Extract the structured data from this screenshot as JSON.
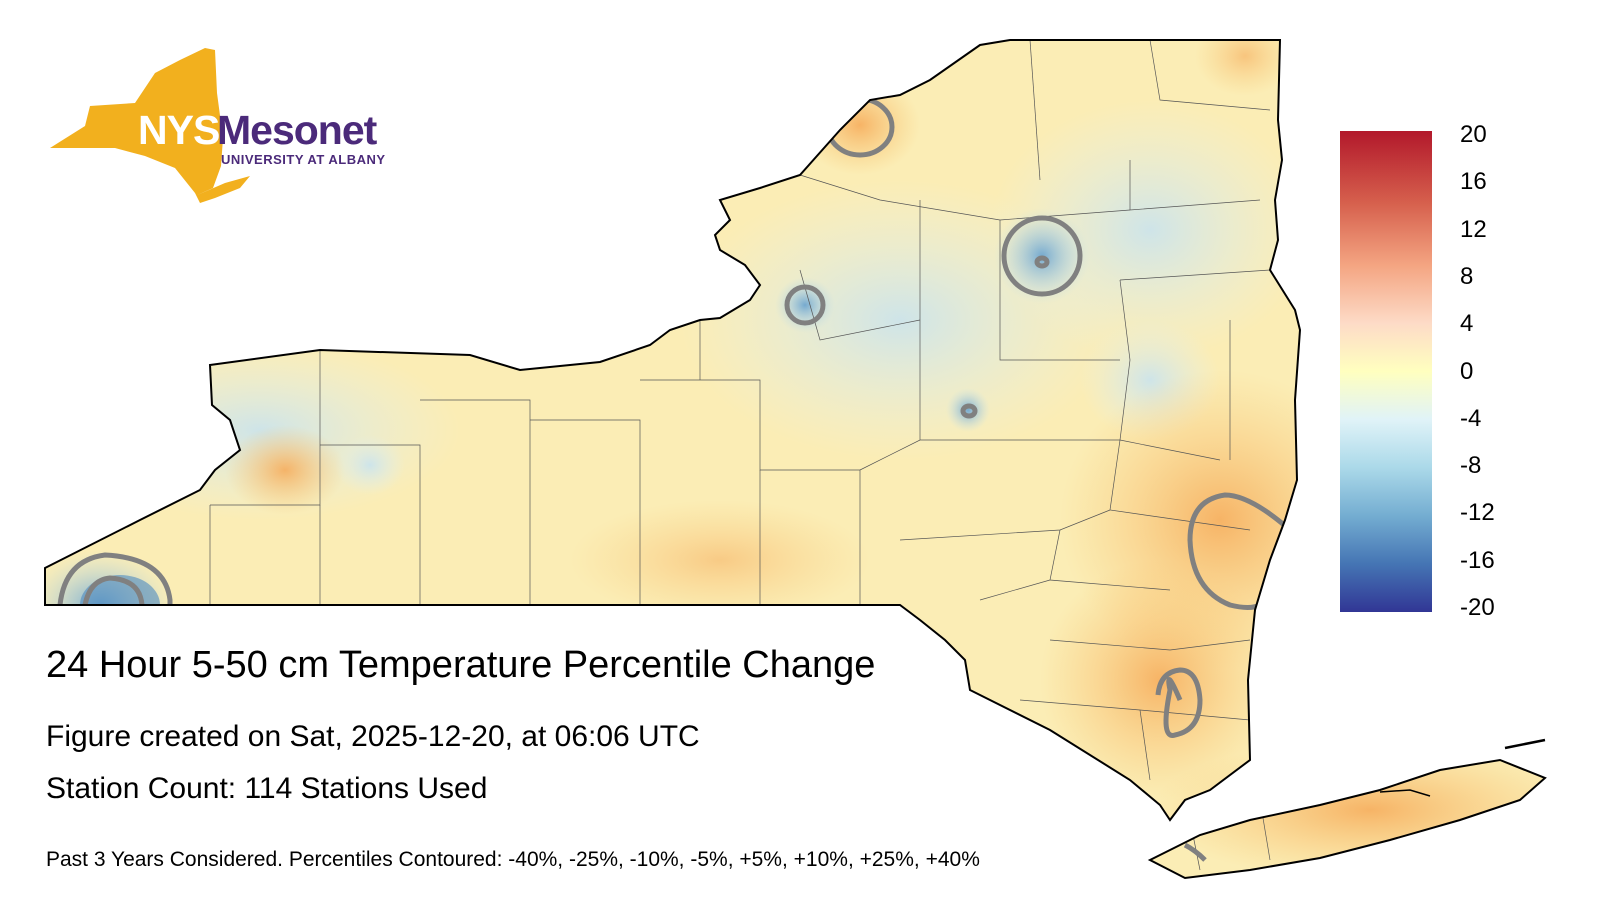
{
  "logo": {
    "brand_nys": "NYS",
    "brand_name": "Mesonet",
    "brand_sub": "UNIVERSITY AT ALBANY",
    "colors": {
      "state_shape": "#f2b01e",
      "text": "#4b2a7a"
    }
  },
  "map": {
    "title": "24 Hour 5-50 cm Temperature Percentile Change",
    "created": "Figure created on Sat, 2025-12-20, at 06:06 UTC",
    "station_count": "Station Count: 114 Stations Used",
    "footnote": "Past 3 Years Considered. Percentiles Contoured: -40%, -25%, -10%, -5%, +5%, +10%, +25%, +40%",
    "contour_levels_percent": [
      -40,
      -25,
      -10,
      -5,
      5,
      10,
      25,
      40
    ],
    "colors": {
      "contour_line": "#808080",
      "county_line": "#555555",
      "state_outline": "#000000",
      "warm": "#f9c774",
      "neutral": "#fdf3b4",
      "cool": "#bcdcec"
    }
  },
  "colorbar": {
    "labels": [
      "20",
      "16",
      "12",
      "8",
      "4",
      "0",
      "-4",
      "-8",
      "-12",
      "-16",
      "-20"
    ],
    "min": -20,
    "max": 20,
    "palette": [
      "#b2182b",
      "#d6604d",
      "#f4a582",
      "#fddbc7",
      "#ffffbf",
      "#e0f3f8",
      "#abd9e9",
      "#74add1",
      "#4575b4",
      "#313695"
    ]
  }
}
